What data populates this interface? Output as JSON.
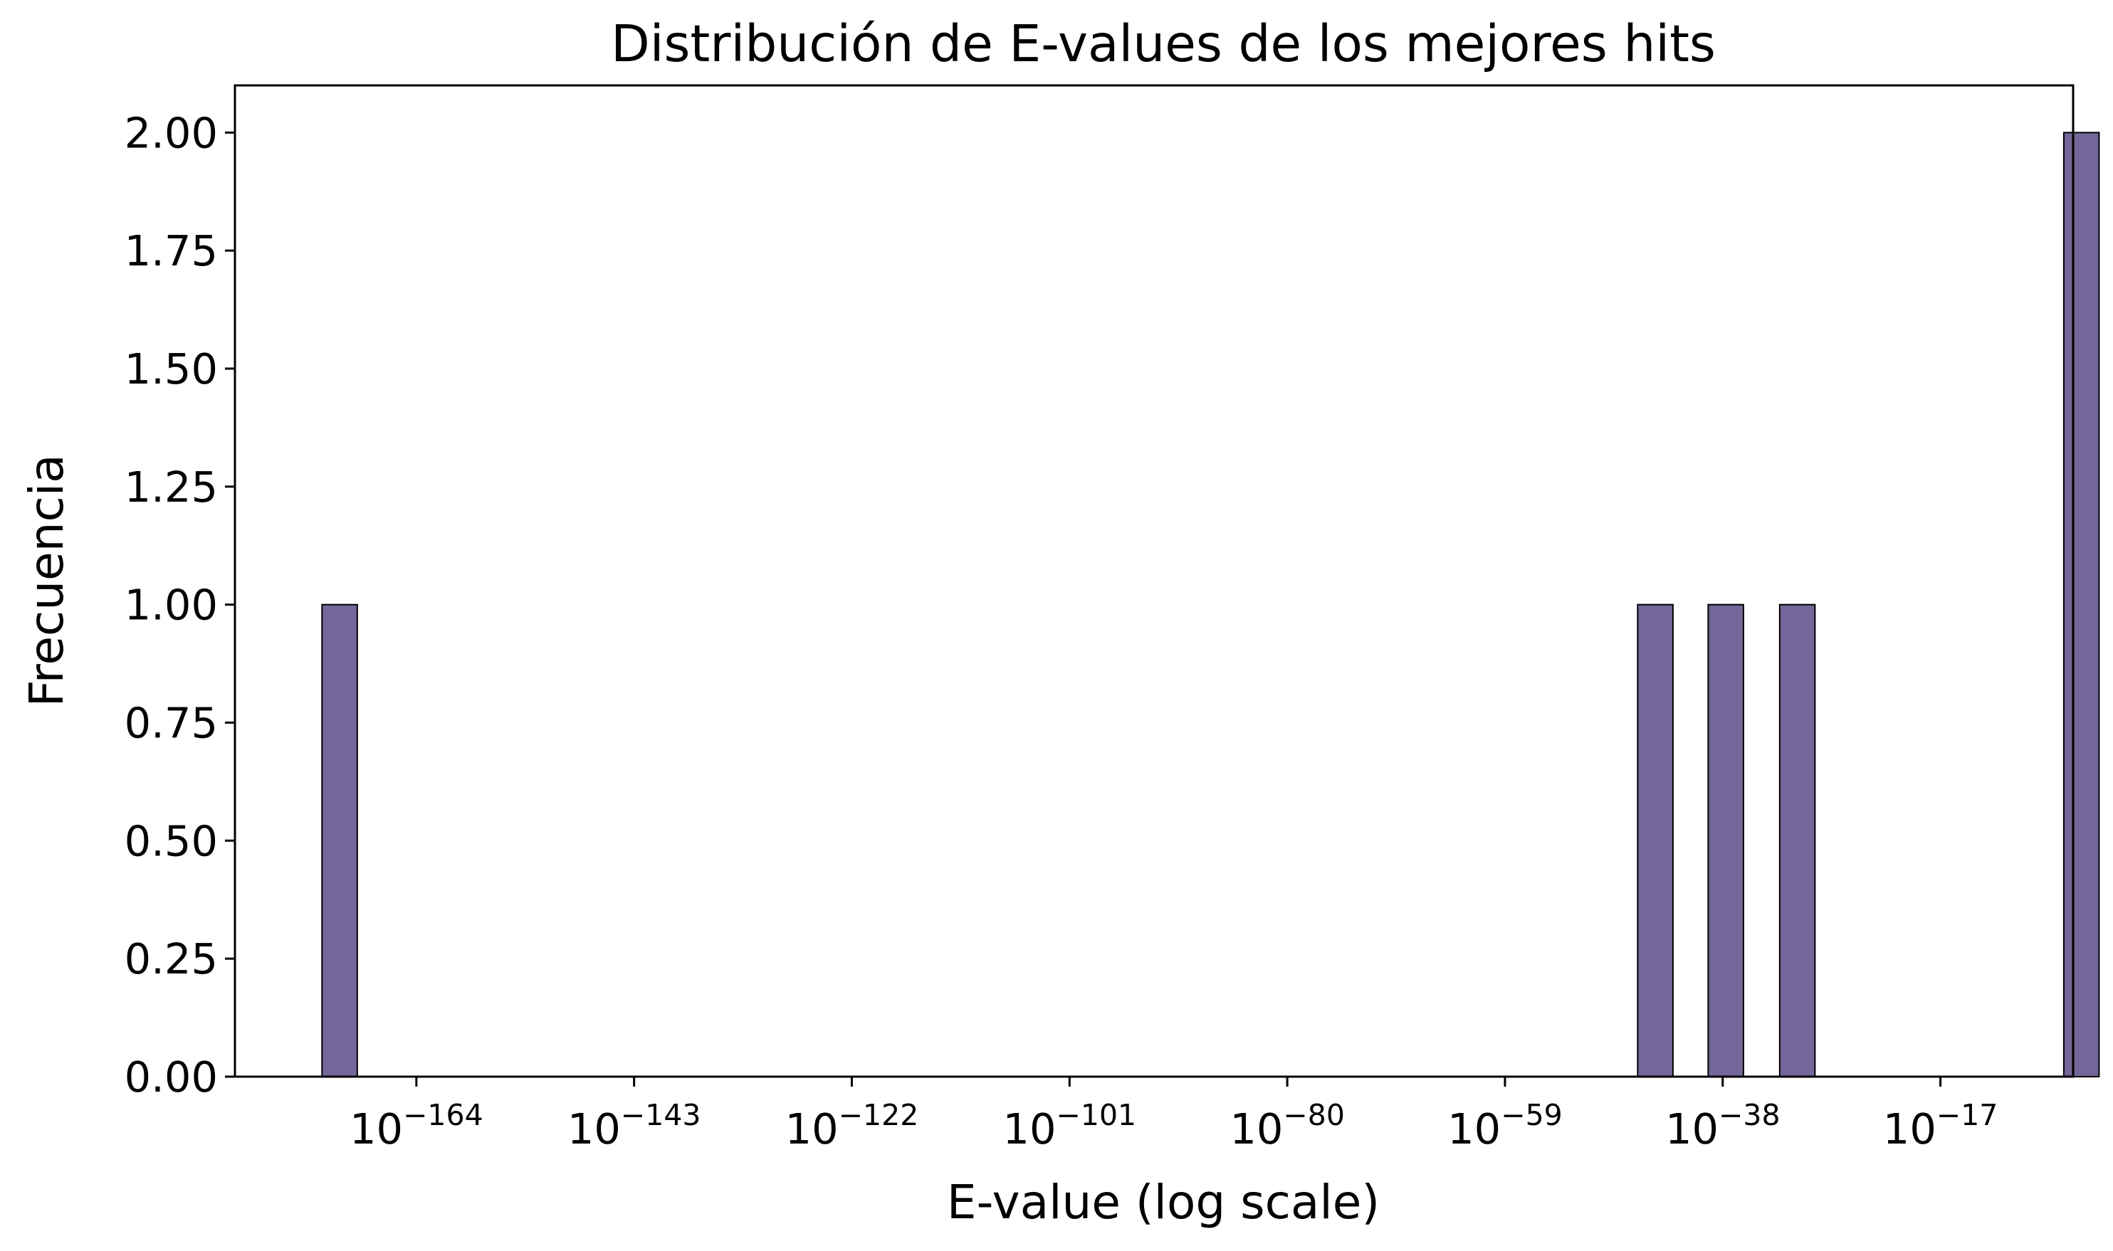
{
  "chart_data": {
    "type": "bar",
    "title": "Distribución de E-values de los mejores hits",
    "xlabel": "E-value (log scale)",
    "ylabel": "Frecuencia",
    "x_scale": "log",
    "x_exponent_range": [
      -181.5,
      -4.2
    ],
    "ylim": [
      0,
      2.1
    ],
    "y_ticks": [
      0.0,
      0.25,
      0.5,
      0.75,
      1.0,
      1.25,
      1.5,
      1.75,
      2.0
    ],
    "y_tick_labels": [
      "0.00",
      "0.25",
      "0.50",
      "0.75",
      "1.00",
      "1.25",
      "1.50",
      "1.75",
      "2.00"
    ],
    "x_tick_exponents": [
      -164,
      -143,
      -122,
      -101,
      -80,
      -59,
      -38,
      -17
    ],
    "x_tick_labels": [
      {
        "base": "10",
        "exp": "−164"
      },
      {
        "base": "10",
        "exp": "−143"
      },
      {
        "base": "10",
        "exp": "−122"
      },
      {
        "base": "10",
        "exp": "−101"
      },
      {
        "base": "10",
        "exp": "−80"
      },
      {
        "base": "10",
        "exp": "−59"
      },
      {
        "base": "10",
        "exp": "−38"
      },
      {
        "base": "10",
        "exp": "−17"
      }
    ],
    "bins": [
      {
        "from_exp": -173.1,
        "to_exp": -169.7,
        "count": 1
      },
      {
        "from_exp": -46.2,
        "to_exp": -42.8,
        "count": 1
      },
      {
        "from_exp": -39.4,
        "to_exp": -36.0,
        "count": 1
      },
      {
        "from_exp": -32.5,
        "to_exp": -29.1,
        "count": 1
      },
      {
        "from_exp": -5.1,
        "to_exp": -1.7,
        "count": 2
      }
    ],
    "bar_color": "#756699",
    "bar_edge_color": "#000000",
    "grid": false
  }
}
